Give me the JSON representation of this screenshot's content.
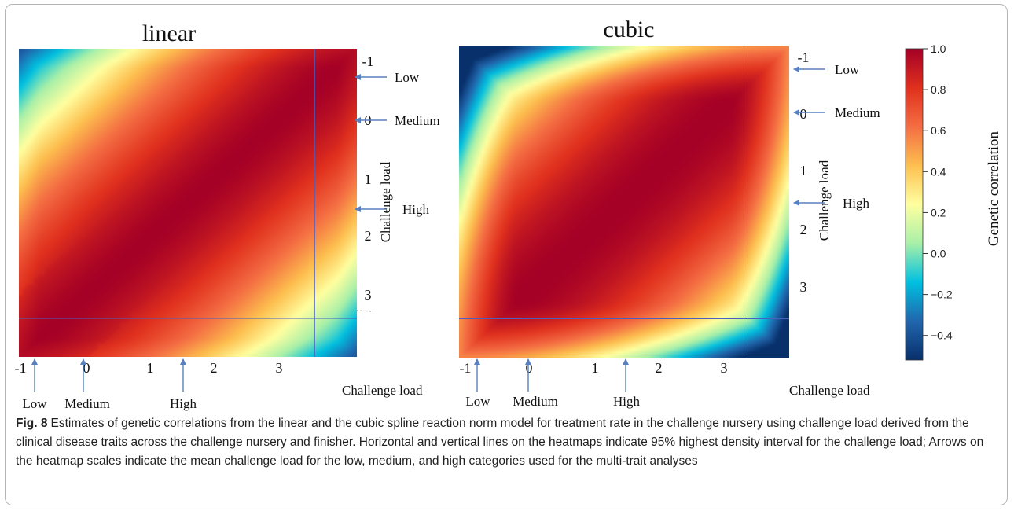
{
  "figure": {
    "caption_label": "Fig. 8",
    "caption_text": "Estimates of genetic correlations from the linear and the cubic spline reaction norm model for treatment rate in the challenge nursery using challenge load derived from the clinical disease traits across the challenge nursery and finisher. Horizontal and vertical lines on the heatmaps indicate 95% highest density interval for the challenge load; Arrows on the heatmap scales indicate the mean challenge load for the low, medium, and high categories used for the multi-trait analyses"
  },
  "chart_data": [
    {
      "type": "heatmap",
      "title": "linear",
      "xlabel": "Challenge load",
      "ylabel": "Challenge load",
      "xlim": [
        -1.2,
        4.0
      ],
      "ylim": [
        -1.2,
        4.0
      ],
      "x_ticks": [
        "-1",
        "0",
        "1",
        "2",
        "3"
      ],
      "y_ticks": [
        "-1",
        "0",
        "1",
        "2",
        "3"
      ],
      "hdi_line": 3.35,
      "correlation_model": "linear",
      "categories": [
        {
          "name": "Low",
          "x": -1.0,
          "y": -0.8
        },
        {
          "name": "Medium",
          "x": -0.1,
          "y": -0.1
        },
        {
          "name": "High",
          "x": 1.5,
          "y": 1.55
        }
      ]
    },
    {
      "type": "heatmap",
      "title": "cubic",
      "xlabel": "Challenge load",
      "ylabel": "Challenge load",
      "xlim": [
        -1.2,
        4.0
      ],
      "ylim": [
        -1.2,
        4.0
      ],
      "x_ticks": [
        "-1",
        "0",
        "1",
        "2",
        "3"
      ],
      "y_ticks": [
        "-1",
        "0",
        "1",
        "2",
        "3"
      ],
      "hdi_line": 3.35,
      "correlation_model": "cubic",
      "categories": [
        {
          "name": "Low",
          "x": -1.0,
          "y": -0.8
        },
        {
          "name": "Medium",
          "x": -0.1,
          "y": -0.1
        },
        {
          "name": "High",
          "x": 1.5,
          "y": 1.55
        }
      ]
    }
  ],
  "colorbar": {
    "label": "Genetic correlation",
    "min": -0.52,
    "max": 1.0,
    "ticks": [
      "1.0",
      "0.8",
      "0.6",
      "0.4",
      "0.2",
      "0.0",
      "−0.2",
      "−0.4"
    ],
    "tick_values": [
      1.0,
      0.8,
      0.6,
      0.4,
      0.2,
      0.0,
      -0.2,
      -0.4
    ],
    "colors": [
      "#08306b",
      "#2166ac",
      "#00c0e0",
      "#a8f0a8",
      "#ffffa0",
      "#fdbf4f",
      "#f46d43",
      "#e0301e",
      "#a50026"
    ]
  },
  "arrow_color": "#5a7fbf",
  "hdi_color": "#4a5fc0"
}
